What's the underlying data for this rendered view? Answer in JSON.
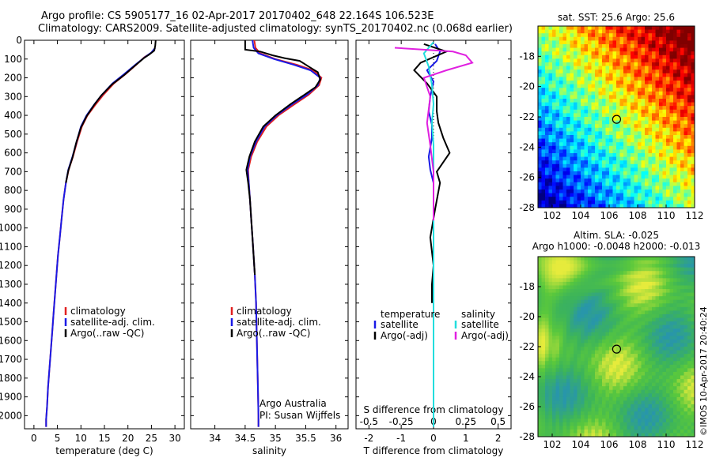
{
  "header": {
    "title_line1": "Argo profile: CS 5905177_16 02-Apr-2017 20170402_648 22.164S 106.523E",
    "title_line2": "Climatology: CARS2009. Satellite-adjusted climatology: synTS_20170402.nc (0.068d earlier)"
  },
  "colors": {
    "climatology": "#e02020",
    "satellite": "#1a1ae6",
    "argo": "#000000",
    "sal_satellite": "#22dddd",
    "sal_argo": "#e020e0"
  },
  "chart_data": [
    {
      "type": "line",
      "name": "temperature-profile",
      "xlabel": "temperature (deg C)",
      "ylabel": "",
      "xlim": [
        -2,
        32
      ],
      "ylim": [
        2070,
        0
      ],
      "xticks": [
        0,
        5,
        10,
        15,
        20,
        25,
        30
      ],
      "yticks": [
        0,
        100,
        200,
        300,
        400,
        500,
        600,
        700,
        800,
        900,
        1000,
        1100,
        1200,
        1300,
        1400,
        1500,
        1600,
        1700,
        1800,
        1900,
        2000
      ],
      "legend": [
        "climatology",
        "satellite-adj. clim.",
        "Argo(..raw -QC)"
      ],
      "series": [
        {
          "name": "climatology",
          "color_key": "climatology",
          "points": [
            [
              25.7,
              50
            ],
            [
              24.8,
              70
            ],
            [
              23.5,
              90
            ],
            [
              21.8,
              130
            ],
            [
              19.5,
              180
            ],
            [
              17.0,
              230
            ],
            [
              14.8,
              290
            ],
            [
              13.2,
              340
            ],
            [
              11.4,
              400
            ],
            [
              10.2,
              460
            ],
            [
              9.2,
              540
            ],
            [
              8.3,
              620
            ],
            [
              7.4,
              690
            ],
            [
              6.8,
              760
            ],
            [
              6.3,
              850
            ],
            [
              5.9,
              950
            ],
            [
              5.5,
              1050
            ],
            [
              5.1,
              1150
            ],
            [
              4.8,
              1250
            ],
            [
              4.5,
              1350
            ],
            [
              4.2,
              1450
            ],
            [
              3.9,
              1550
            ],
            [
              3.6,
              1650
            ],
            [
              3.3,
              1750
            ],
            [
              3.0,
              1850
            ],
            [
              2.8,
              1950
            ],
            [
              2.6,
              2020
            ],
            [
              2.6,
              2060
            ]
          ]
        },
        {
          "name": "satellite-adj. clim.",
          "color_key": "satellite",
          "points": [
            [
              25.8,
              40
            ],
            [
              25.0,
              65
            ],
            [
              23.6,
              90
            ],
            [
              21.6,
              130
            ],
            [
              19.2,
              180
            ],
            [
              16.7,
              230
            ],
            [
              14.5,
              290
            ],
            [
              12.9,
              340
            ],
            [
              11.2,
              400
            ],
            [
              10.0,
              460
            ],
            [
              9.1,
              540
            ],
            [
              8.2,
              620
            ],
            [
              7.3,
              690
            ],
            [
              6.8,
              760
            ],
            [
              6.3,
              850
            ],
            [
              5.9,
              950
            ],
            [
              5.5,
              1050
            ],
            [
              5.1,
              1150
            ],
            [
              4.8,
              1250
            ],
            [
              4.5,
              1350
            ],
            [
              4.2,
              1450
            ],
            [
              3.9,
              1550
            ],
            [
              3.6,
              1650
            ],
            [
              3.3,
              1750
            ],
            [
              3.0,
              1850
            ],
            [
              2.8,
              1950
            ],
            [
              2.6,
              2020
            ],
            [
              2.6,
              2060
            ]
          ]
        },
        {
          "name": "Argo(..raw -QC)",
          "color_key": "argo",
          "points": [
            [
              25.9,
              0
            ],
            [
              25.8,
              30
            ],
            [
              25.6,
              55
            ],
            [
              24.6,
              75
            ],
            [
              23.4,
              95
            ],
            [
              21.5,
              135
            ],
            [
              19.2,
              185
            ],
            [
              16.6,
              235
            ],
            [
              14.3,
              295
            ],
            [
              12.8,
              345
            ],
            [
              11.2,
              405
            ],
            [
              10.0,
              465
            ],
            [
              9.0,
              545
            ],
            [
              8.2,
              625
            ],
            [
              7.3,
              695
            ],
            [
              6.8,
              760
            ]
          ]
        }
      ]
    },
    {
      "type": "line",
      "name": "salinity-profile",
      "xlabel": "salinity",
      "ylabel": "",
      "xlim": [
        33.6,
        36.2
      ],
      "ylim": [
        2070,
        0
      ],
      "xticks": [
        34,
        34.5,
        35,
        35.5,
        36
      ],
      "legend": [
        "climatology",
        "satellite-adj. clim.",
        "Argo(..raw -QC)"
      ],
      "annotation": [
        "Argo Australia",
        "PI: Susan Wijffels"
      ],
      "series": [
        {
          "name": "climatology",
          "color_key": "climatology",
          "points": [
            [
              34.65,
              0
            ],
            [
              34.67,
              40
            ],
            [
              34.75,
              70
            ],
            [
              35.0,
              100
            ],
            [
              35.35,
              130
            ],
            [
              35.62,
              160
            ],
            [
              35.76,
              200
            ],
            [
              35.72,
              240
            ],
            [
              35.55,
              290
            ],
            [
              35.32,
              340
            ],
            [
              35.05,
              400
            ],
            [
              34.85,
              460
            ],
            [
              34.7,
              540
            ],
            [
              34.6,
              620
            ],
            [
              34.55,
              690
            ],
            [
              34.56,
              760
            ],
            [
              34.58,
              850
            ],
            [
              34.6,
              950
            ],
            [
              34.62,
              1050
            ],
            [
              34.64,
              1150
            ],
            [
              34.66,
              1250
            ],
            [
              34.68,
              1400
            ],
            [
              34.69,
              1550
            ],
            [
              34.7,
              1700
            ],
            [
              34.71,
              1850
            ],
            [
              34.72,
              2000
            ],
            [
              34.72,
              2060
            ]
          ]
        },
        {
          "name": "satellite-adj. clim.",
          "color_key": "satellite",
          "points": [
            [
              34.62,
              0
            ],
            [
              34.64,
              40
            ],
            [
              34.72,
              70
            ],
            [
              34.98,
              100
            ],
            [
              35.3,
              130
            ],
            [
              35.58,
              160
            ],
            [
              35.74,
              200
            ],
            [
              35.7,
              240
            ],
            [
              35.52,
              290
            ],
            [
              35.28,
              340
            ],
            [
              35.02,
              400
            ],
            [
              34.82,
              460
            ],
            [
              34.68,
              540
            ],
            [
              34.58,
              620
            ],
            [
              34.54,
              690
            ],
            [
              34.56,
              760
            ],
            [
              34.58,
              850
            ],
            [
              34.6,
              950
            ],
            [
              34.62,
              1050
            ],
            [
              34.64,
              1150
            ],
            [
              34.66,
              1250
            ],
            [
              34.68,
              1400
            ],
            [
              34.69,
              1550
            ],
            [
              34.7,
              1700
            ],
            [
              34.71,
              1850
            ],
            [
              34.72,
              2000
            ],
            [
              34.72,
              2060
            ]
          ]
        },
        {
          "name": "Argo(..raw -QC)",
          "color_key": "argo",
          "points": [
            [
              34.5,
              0
            ],
            [
              34.5,
              50
            ],
            [
              34.75,
              60
            ],
            [
              34.95,
              80
            ],
            [
              35.15,
              95
            ],
            [
              35.4,
              110
            ],
            [
              35.55,
              140
            ],
            [
              35.7,
              170
            ],
            [
              35.74,
              210
            ],
            [
              35.66,
              250
            ],
            [
              35.48,
              290
            ],
            [
              35.25,
              340
            ],
            [
              35.0,
              400
            ],
            [
              34.8,
              460
            ],
            [
              34.66,
              540
            ],
            [
              34.57,
              620
            ],
            [
              34.52,
              690
            ],
            [
              34.55,
              760
            ],
            [
              34.58,
              850
            ],
            [
              34.6,
              950
            ],
            [
              34.62,
              1050
            ],
            [
              34.64,
              1150
            ],
            [
              34.66,
              1250
            ]
          ]
        }
      ]
    },
    {
      "type": "line",
      "name": "difference-profile",
      "xlabel": "T difference from climatology",
      "xlabel_top": "S difference from climatology",
      "xlim": [
        -2.4,
        2.4
      ],
      "ylim": [
        2070,
        0
      ],
      "xticks": [
        -2,
        -1,
        0,
        1,
        2
      ],
      "xticks_top": [
        -0.5,
        -0.25,
        0,
        0.25,
        0.5
      ],
      "legend_temperature": {
        "heading": "temperature",
        "items": [
          "satellite",
          "Argo(-adj)"
        ]
      },
      "legend_salinity": {
        "heading": "salinity",
        "items": [
          "satellite",
          "Argo(-adj)"
        ]
      },
      "series": [
        {
          "name": "temperature satellite",
          "color_key": "satellite",
          "points": [
            [
              0.05,
              20
            ],
            [
              0.2,
              60
            ],
            [
              0.1,
              110
            ],
            [
              -0.2,
              160
            ],
            [
              0.0,
              220
            ],
            [
              -0.1,
              300
            ],
            [
              -0.15,
              380
            ],
            [
              -0.05,
              450
            ],
            [
              -0.05,
              520
            ],
            [
              -0.15,
              620
            ],
            [
              -0.1,
              690
            ],
            [
              0.0,
              760
            ],
            [
              0.0,
              900
            ],
            [
              0.0,
              1100
            ],
            [
              0.0,
              1300
            ],
            [
              0.0,
              1500
            ],
            [
              0.0,
              1700
            ],
            [
              0.0,
              1900
            ],
            [
              0.0,
              2060
            ]
          ]
        },
        {
          "name": "temperature Argo(-adj)",
          "color_key": "argo",
          "points": [
            [
              -0.3,
              20
            ],
            [
              0.4,
              60
            ],
            [
              -0.4,
              120
            ],
            [
              -0.6,
              160
            ],
            [
              -0.2,
              230
            ],
            [
              0.1,
              300
            ],
            [
              0.1,
              380
            ],
            [
              0.15,
              440
            ],
            [
              0.3,
              520
            ],
            [
              0.5,
              600
            ],
            [
              0.1,
              700
            ],
            [
              0.2,
              760
            ],
            [
              0.05,
              900
            ],
            [
              -0.1,
              1050
            ],
            [
              0.0,
              1200
            ],
            [
              -0.05,
              1300
            ],
            [
              -0.05,
              1400
            ]
          ]
        },
        {
          "name": "salinity satellite",
          "color_key": "sal_satellite",
          "points": [
            [
              0.0,
              10
            ],
            [
              -0.3,
              70
            ],
            [
              -0.15,
              140
            ],
            [
              -0.05,
              240
            ],
            [
              0.0,
              340
            ],
            [
              -0.05,
              440
            ],
            [
              0.0,
              560
            ],
            [
              0.0,
              700
            ],
            [
              0.0,
              900
            ],
            [
              0.0,
              1100
            ],
            [
              0.0,
              1300
            ],
            [
              0.0,
              1500
            ],
            [
              0.0,
              1700
            ],
            [
              0.0,
              1900
            ],
            [
              0.0,
              2060
            ]
          ]
        },
        {
          "name": "salinity Argo(-adj)",
          "color_key": "sal_argo",
          "points": [
            [
              -1.2,
              40
            ],
            [
              0.6,
              60
            ],
            [
              1.0,
              80
            ],
            [
              1.2,
              120
            ],
            [
              0.4,
              160
            ],
            [
              -0.3,
              200
            ],
            [
              -0.1,
              300
            ],
            [
              -0.2,
              440
            ],
            [
              -0.1,
              560
            ],
            [
              0.0,
              700
            ],
            [
              0.0,
              820
            ],
            [
              0.0,
              960
            ]
          ]
        }
      ]
    },
    {
      "type": "heatmap",
      "name": "sst-map",
      "title": "sat. SST: 25.6 Argo: 25.6",
      "xlim": [
        101,
        112
      ],
      "ylim": [
        -28,
        -16
      ],
      "xticks": [
        102,
        104,
        106,
        108,
        110,
        112
      ],
      "yticks": [
        -18,
        -20,
        -22,
        -24,
        -26,
        -28
      ],
      "marker": {
        "lon": 106.523,
        "lat": -22.164
      }
    },
    {
      "type": "heatmap",
      "name": "sla-map",
      "title_line1": "Altim. SLA: -0.025",
      "title_line2": "Argo h1000: -0.0048 h2000: -0.013",
      "xlim": [
        101,
        112
      ],
      "ylim": [
        -28,
        -16
      ],
      "xticks": [
        102,
        104,
        106,
        108,
        110,
        112
      ],
      "yticks": [
        -18,
        -20,
        -22,
        -24,
        -26,
        -28
      ],
      "marker": {
        "lon": 106.523,
        "lat": -22.164
      }
    }
  ],
  "footer": {
    "credit": "©IMOS 10-Apr-2017 20:40:24"
  }
}
